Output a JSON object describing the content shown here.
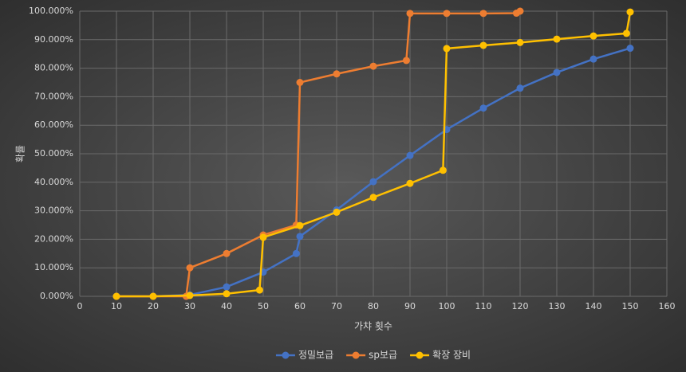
{
  "chart_data": {
    "type": "line",
    "x_label": "가챠 횟수",
    "y_label": "확률",
    "xlim": [
      0,
      160
    ],
    "xticks": [
      0,
      10,
      20,
      30,
      40,
      50,
      60,
      70,
      80,
      90,
      100,
      110,
      120,
      130,
      140,
      150,
      160
    ],
    "ylim": [
      0,
      100
    ],
    "yticks": [
      {
        "value": 0,
        "label": "0.000%"
      },
      {
        "value": 10,
        "label": "10.000%"
      },
      {
        "value": 20,
        "label": "20.000%"
      },
      {
        "value": 30,
        "label": "30.000%"
      },
      {
        "value": 40,
        "label": "40.000%"
      },
      {
        "value": 50,
        "label": "50.000%"
      },
      {
        "value": 60,
        "label": "60.000%"
      },
      {
        "value": 70,
        "label": "70.000%"
      },
      {
        "value": 80,
        "label": "80.000%"
      },
      {
        "value": 90,
        "label": "90.000%"
      },
      {
        "value": 100,
        "label": "100.000%"
      }
    ],
    "grid": true,
    "legend": "bottom",
    "series": [
      {
        "name": "정밀보급",
        "color": "#4472c4",
        "x": [
          10,
          20,
          30,
          40,
          50,
          59,
          60,
          70,
          80,
          90,
          100,
          110,
          120,
          130,
          140,
          150
        ],
        "values": [
          0,
          0,
          0.5,
          3.3,
          8.5,
          15,
          21,
          30.3,
          40.2,
          49.4,
          58.5,
          66,
          73,
          78.5,
          83.2,
          87
        ]
      },
      {
        "name": "sp보급",
        "color": "#ed7d31",
        "x": [
          10,
          20,
          29,
          30,
          40,
          50,
          59,
          60,
          70,
          80,
          89,
          90,
          100,
          110,
          119,
          120
        ],
        "values": [
          0,
          0,
          0,
          10,
          15,
          21.5,
          25,
          75,
          78,
          80.7,
          82.7,
          99.2,
          99.2,
          99.2,
          99.3,
          100
        ]
      },
      {
        "name": "확장 장비",
        "color": "#ffc000",
        "x": [
          10,
          20,
          30,
          40,
          49,
          50,
          60,
          70,
          80,
          90,
          99,
          100,
          110,
          120,
          130,
          140,
          149,
          150
        ],
        "values": [
          0,
          0,
          0.3,
          0.9,
          2.2,
          20.7,
          24.8,
          29.5,
          34.7,
          39.6,
          44.2,
          86.9,
          88,
          89,
          90.2,
          91.3,
          92.2,
          99.7
        ]
      }
    ]
  }
}
